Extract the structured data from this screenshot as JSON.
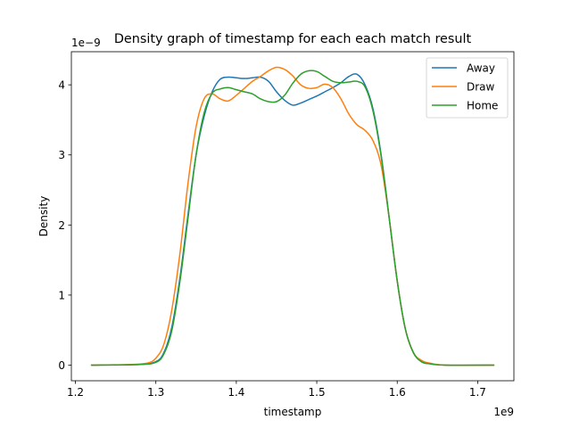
{
  "chart_data": {
    "type": "line",
    "title": "Density graph of timestamp for each each match result",
    "xlabel": "timestamp",
    "ylabel": "Density",
    "x_offset_label": "1e9",
    "y_offset_label": "1e−9",
    "xlim": [
      1.195,
      1.745
    ],
    "ylim": [
      -0.2225,
      4.4725
    ],
    "x_ticks": [
      1.2,
      1.3,
      1.4,
      1.5,
      1.6,
      1.7
    ],
    "x_tick_labels": [
      "1.2",
      "1.3",
      "1.4",
      "1.5",
      "1.6",
      "1.7"
    ],
    "y_ticks": [
      0,
      1,
      2,
      3,
      4
    ],
    "y_tick_labels": [
      "0",
      "1",
      "2",
      "3",
      "4"
    ],
    "grid": false,
    "legend_position": "top-right",
    "series": [
      {
        "name": "Away",
        "color": "#1f77b4",
        "x": [
          1.22,
          1.28,
          1.3,
          1.31,
          1.32,
          1.33,
          1.34,
          1.35,
          1.36,
          1.37,
          1.38,
          1.39,
          1.4,
          1.41,
          1.42,
          1.43,
          1.44,
          1.45,
          1.46,
          1.47,
          1.48,
          1.49,
          1.5,
          1.51,
          1.52,
          1.53,
          1.54,
          1.55,
          1.56,
          1.57,
          1.58,
          1.59,
          1.6,
          1.61,
          1.62,
          1.63,
          1.64,
          1.66,
          1.72
        ],
        "y": [
          0.0,
          0.01,
          0.05,
          0.18,
          0.55,
          1.25,
          2.15,
          3.0,
          3.55,
          3.9,
          4.08,
          4.11,
          4.1,
          4.09,
          4.1,
          4.11,
          4.05,
          3.9,
          3.78,
          3.71,
          3.74,
          3.79,
          3.84,
          3.9,
          3.96,
          4.03,
          4.12,
          4.15,
          4.0,
          3.65,
          3.0,
          2.1,
          1.2,
          0.52,
          0.18,
          0.05,
          0.02,
          0.0,
          0.0
        ]
      },
      {
        "name": "Draw",
        "color": "#ff7f0e",
        "x": [
          1.22,
          1.27,
          1.29,
          1.3,
          1.31,
          1.32,
          1.33,
          1.34,
          1.35,
          1.36,
          1.37,
          1.38,
          1.39,
          1.4,
          1.41,
          1.42,
          1.43,
          1.44,
          1.45,
          1.46,
          1.47,
          1.48,
          1.49,
          1.5,
          1.51,
          1.52,
          1.53,
          1.54,
          1.55,
          1.56,
          1.57,
          1.58,
          1.59,
          1.6,
          1.61,
          1.62,
          1.63,
          1.64,
          1.66,
          1.72
        ],
        "y": [
          0.0,
          0.01,
          0.03,
          0.1,
          0.3,
          0.8,
          1.6,
          2.6,
          3.4,
          3.8,
          3.87,
          3.8,
          3.77,
          3.85,
          3.95,
          4.05,
          4.12,
          4.2,
          4.25,
          4.22,
          4.13,
          4.0,
          3.95,
          3.96,
          4.01,
          3.96,
          3.8,
          3.58,
          3.43,
          3.35,
          3.2,
          2.85,
          2.1,
          1.2,
          0.52,
          0.18,
          0.07,
          0.03,
          0.0,
          0.0
        ]
      },
      {
        "name": "Home",
        "color": "#2ca02c",
        "x": [
          1.22,
          1.28,
          1.3,
          1.31,
          1.32,
          1.33,
          1.34,
          1.35,
          1.36,
          1.37,
          1.38,
          1.39,
          1.4,
          1.41,
          1.42,
          1.43,
          1.44,
          1.45,
          1.46,
          1.47,
          1.48,
          1.49,
          1.5,
          1.51,
          1.52,
          1.53,
          1.54,
          1.55,
          1.56,
          1.57,
          1.58,
          1.59,
          1.6,
          1.61,
          1.62,
          1.63,
          1.64,
          1.66,
          1.72
        ],
        "y": [
          0.0,
          0.01,
          0.04,
          0.16,
          0.5,
          1.2,
          2.1,
          3.0,
          3.6,
          3.88,
          3.94,
          3.96,
          3.93,
          3.9,
          3.87,
          3.8,
          3.76,
          3.76,
          3.85,
          4.02,
          4.15,
          4.2,
          4.19,
          4.12,
          4.05,
          4.03,
          4.04,
          4.05,
          3.97,
          3.62,
          2.98,
          2.1,
          1.2,
          0.52,
          0.18,
          0.05,
          0.02,
          0.0,
          0.0
        ]
      }
    ]
  }
}
